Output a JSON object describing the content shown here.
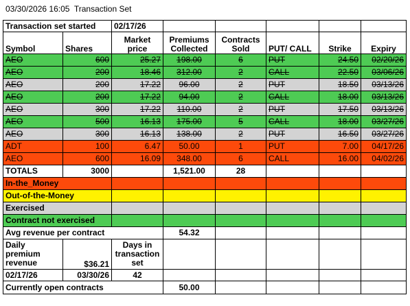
{
  "header": {
    "datetime": "03/30/2026 16:05",
    "title": "Transaction Set"
  },
  "started": {
    "label": "Transaction set started",
    "date": "02/17/26"
  },
  "columns": {
    "symbol": "Symbol",
    "shares": "Shares",
    "market_price": "Market price",
    "premiums": "Premiums Collected",
    "contracts": "Contracts Sold",
    "putcall": "PUT/ CALL",
    "strike": "Strike",
    "expiry": "Expiry"
  },
  "rows": [
    {
      "symbol": "AEO",
      "shares": "600",
      "price": "25.27",
      "premium": "198.00",
      "contracts": "6",
      "type": "PUT",
      "strike": "24.50",
      "expiry": "02/20/26",
      "status": "green"
    },
    {
      "symbol": "AEO",
      "shares": "200",
      "price": "18.46",
      "premium": "312.00",
      "contracts": "2",
      "type": "CALL",
      "strike": "22.50",
      "expiry": "03/06/26",
      "status": "green"
    },
    {
      "symbol": "AEO",
      "shares": "200",
      "price": "17.22",
      "premium": "96.00",
      "contracts": "2",
      "type": "PUT",
      "strike": "18.50",
      "expiry": "03/13/26",
      "status": "gray"
    },
    {
      "symbol": "AEO",
      "shares": "200",
      "price": "17.22",
      "premium": "94.00",
      "contracts": "2",
      "type": "CALL",
      "strike": "18.00",
      "expiry": "03/13/26",
      "status": "green"
    },
    {
      "symbol": "AEO",
      "shares": "300",
      "price": "17.22",
      "premium": "110.00",
      "contracts": "2",
      "type": "PUT",
      "strike": "17.50",
      "expiry": "03/13/26",
      "status": "gray"
    },
    {
      "symbol": "AEO",
      "shares": "500",
      "price": "16.13",
      "premium": "175.00",
      "contracts": "5",
      "type": "CALL",
      "strike": "18.00",
      "expiry": "03/27/26",
      "status": "green"
    },
    {
      "symbol": "AEO",
      "shares": "300",
      "price": "16.13",
      "premium": "138.00",
      "contracts": "2",
      "type": "PUT",
      "strike": "16.50",
      "expiry": "03/27/26",
      "status": "gray"
    },
    {
      "symbol": "ADT",
      "shares": "100",
      "price": "6.47",
      "premium": "50.00",
      "contracts": "1",
      "type": "PUT",
      "strike": "7.00",
      "expiry": "04/17/26",
      "status": "orange"
    },
    {
      "symbol": "AEO",
      "shares": "600",
      "price": "16.09",
      "premium": "348.00",
      "contracts": "6",
      "type": "CALL",
      "strike": "16.00",
      "expiry": "04/02/26",
      "status": "orange"
    }
  ],
  "totals": {
    "label": "TOTALS",
    "shares": "3000",
    "premiums": "1,521.00",
    "contracts": "28"
  },
  "legend": {
    "itm": "In-the_Money",
    "otm": "Out-of-the-Money",
    "exercised": "Exercised",
    "not_exercised": "Contract not exercised"
  },
  "avg": {
    "label": "Avg revenue per contract",
    "value": "54.32"
  },
  "daily": {
    "label": "Daily premium revenue",
    "value": "$36.21",
    "days_label": "Days in transaction set"
  },
  "period": {
    "start": "02/17/26",
    "end": "03/30/26",
    "days": "42"
  },
  "open": {
    "label": "Currently open contracts",
    "value": "50.00"
  },
  "colors": {
    "green": "#4ecb54",
    "gray": "#d3d3d3",
    "orange": "#fd4a0b",
    "yellow": "#fff200"
  }
}
